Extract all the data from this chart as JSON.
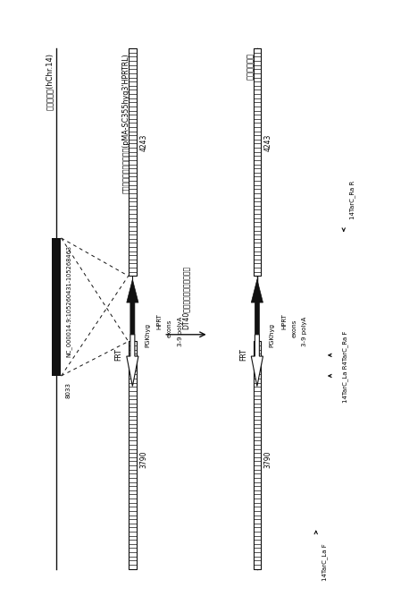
{
  "bg_color": "#ffffff",
  "fig_width": 5.67,
  "fig_height": 8.66,
  "left_allele_label": "正常アレル(hChr.14)",
  "left_allele_nc": "NC_000014.9:105260431-105268463",
  "left_allele_nc_short": "8033",
  "vector_label": "ターゲティングベクター(pMA-SC355hyg3'HPRTRL)",
  "vector_top_label": "4243",
  "vector_bot_label": "3790",
  "vector_frt_label": "FRT",
  "vector_pgkhyg_label": "PGKhyg",
  "vector_hprt_label": "HPRT",
  "vector_exons_label": "exons",
  "vector_poly_label": "3-9 polyA",
  "arrow_label": "DT40細胞における相同組換え",
  "right_allele_label": "組換えアレル",
  "right_top_label": "4243",
  "right_bot_label": "3790",
  "right_frt_label": "FRT",
  "right_pgkhyg_label": "PGKhyg",
  "right_hprt_label": "HPRT",
  "right_exons_label": "exons",
  "right_poly_label": "3-9 polyA",
  "primer_14TarC_La_F": "14TarC_La F",
  "primer_14TarC_La_R4TarC_Ra_F": "14TarC_La R4TarC_Ra F",
  "primer_14TarC_Ra_R": "14TarC_Ra R",
  "line_color": "#000000",
  "fill_color": "#111111",
  "white_color": "#ffffff"
}
